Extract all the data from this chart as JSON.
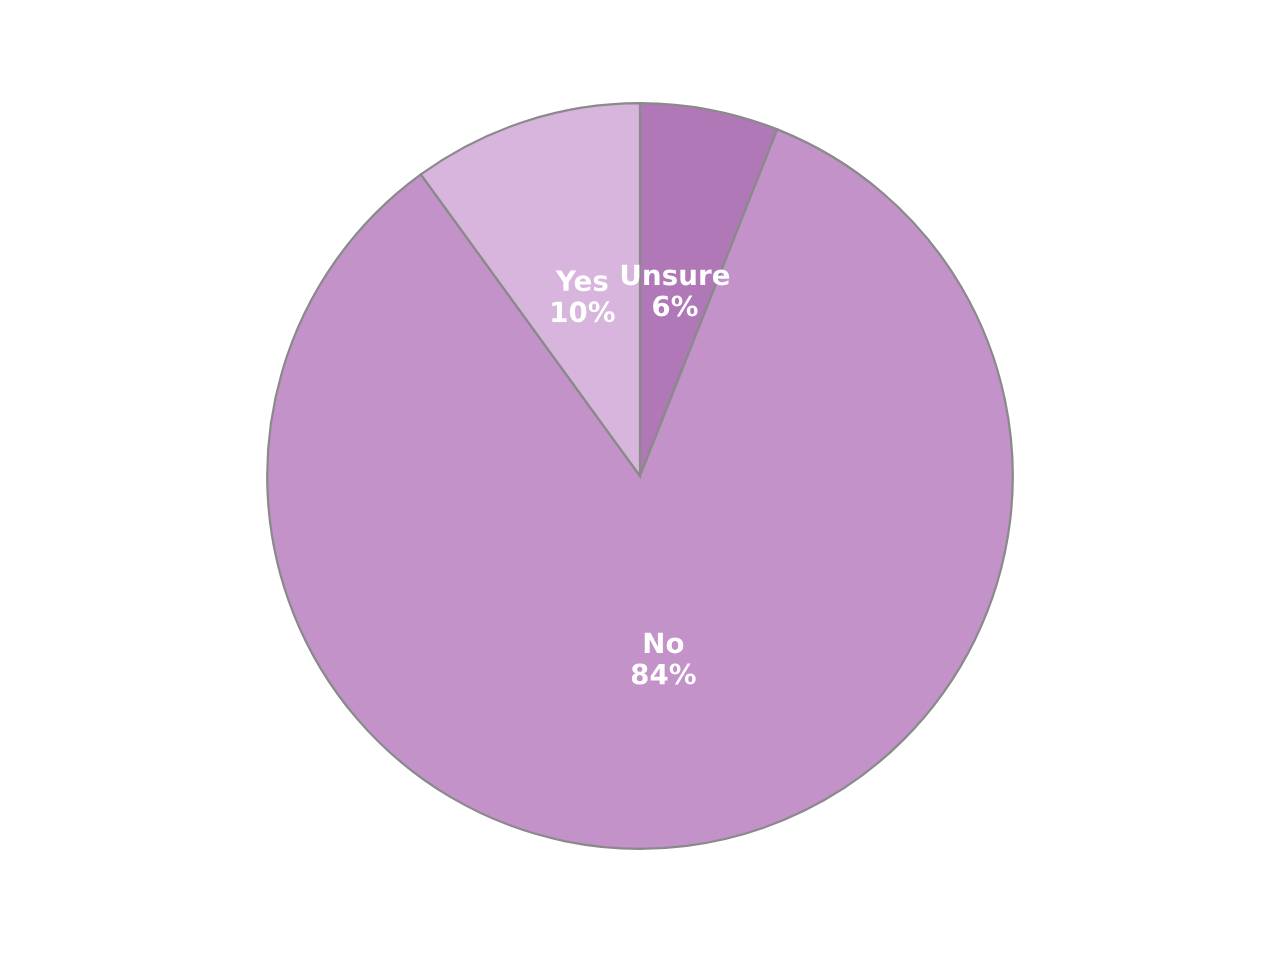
{
  "chart_data": {
    "type": "pie",
    "categories": [
      "Unsure",
      "No",
      "Yes"
    ],
    "values": [
      6,
      84,
      10
    ],
    "value_labels": [
      "6%",
      "84%",
      "10%"
    ],
    "colors": [
      "#b178b8",
      "#c292c9",
      "#d7b5dc"
    ],
    "legend": false
  }
}
